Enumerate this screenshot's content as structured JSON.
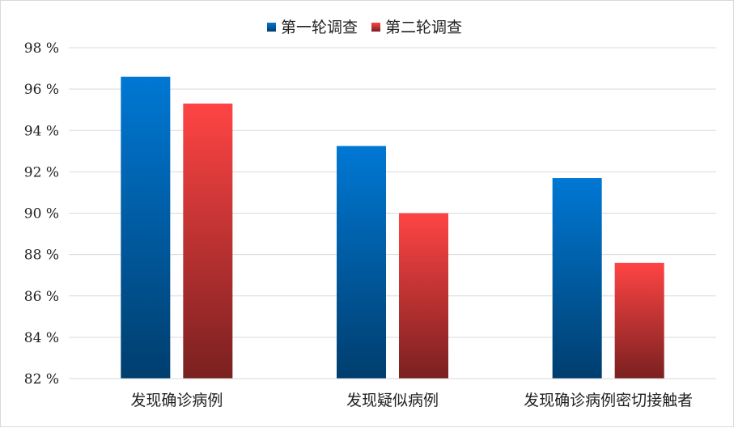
{
  "chart_data": {
    "type": "bar",
    "title": "",
    "xlabel": "",
    "ylabel": "",
    "categories": [
      "发现确诊病例",
      "发现疑似病例",
      "发现确诊病例密切接触者"
    ],
    "series": [
      {
        "name": "第一轮调查",
        "values": [
          96.6,
          93.25,
          91.7
        ],
        "color_top": "#0078d4",
        "color_bottom": "#003e6e"
      },
      {
        "name": "第二轮调查",
        "values": [
          95.3,
          90.0,
          87.6
        ],
        "color_top": "#ff4444",
        "color_bottom": "#7a2020"
      }
    ],
    "ylim": [
      82,
      98
    ],
    "yticks": [
      82,
      84,
      86,
      88,
      90,
      92,
      94,
      96,
      98
    ],
    "ytick_suffix": " %",
    "grid": true,
    "legend": "top-center"
  }
}
